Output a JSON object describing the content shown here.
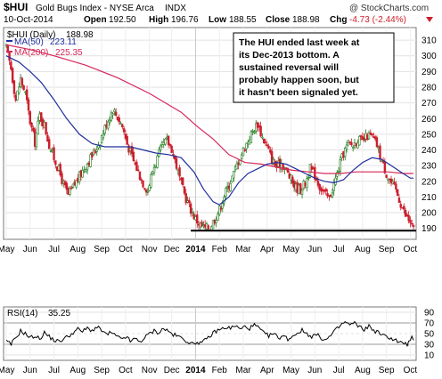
{
  "header": {
    "symbol": "$HUI",
    "name": "Gold Bugs Index - NYSE Arca",
    "exchange": "INDX",
    "date": "10-Oct-2014",
    "open_label": "Open",
    "open": "192.50",
    "high_label": "High",
    "high": "196.76",
    "low_label": "Low",
    "low": "188.55",
    "close_label": "Close",
    "close": "188.98",
    "chg_label": "Chg",
    "chg": "-4.73 (-2.44%)",
    "watermark": "@ StockCharts.com"
  },
  "colors": {
    "up": "#1b7a1b",
    "down": "#cc1e2c",
    "ma50": "#1f2e9e",
    "ma200": "#d6285a",
    "rsi": "#000000",
    "chg": "#cc1e2c"
  },
  "annotation": {
    "text_lines": [
      "The HUI ended last week at",
      "its Dec-2013 bottom. A",
      "sustained reversal will",
      "probably happen soon, but",
      "it hasn't been signaled yet."
    ]
  },
  "chart_data": [
    {
      "type": "candlestick",
      "legend": [
        {
          "label": "$HUI (Daily)",
          "value": "188.98"
        },
        {
          "label": "MA(50)",
          "value": "223.11"
        },
        {
          "label": "MA(200)",
          "value": "225.35"
        }
      ],
      "ylim": [
        183,
        318
      ],
      "y_ticks": [
        190,
        200,
        210,
        220,
        230,
        240,
        250,
        260,
        270,
        280,
        290,
        300,
        310
      ],
      "x_ticks": [
        "May",
        "Jun",
        "Jul",
        "Aug",
        "Sep",
        "Oct",
        "Nov",
        "Dec",
        "2014",
        "Feb",
        "Mar",
        "Apr",
        "May",
        "Jun",
        "Jul",
        "Aug",
        "Sep",
        "Oct"
      ],
      "support_level": 188.5,
      "price_path": [
        [
          0,
          305
        ],
        [
          3,
          292
        ],
        [
          6,
          272
        ],
        [
          9,
          285
        ],
        [
          12,
          276
        ],
        [
          15,
          258
        ],
        [
          18,
          245
        ],
        [
          21,
          262
        ],
        [
          24,
          256
        ],
        [
          27,
          243
        ],
        [
          30,
          235
        ],
        [
          33,
          227
        ],
        [
          36,
          218
        ],
        [
          39,
          211
        ],
        [
          43,
          218
        ],
        [
          47,
          225
        ],
        [
          51,
          232
        ],
        [
          55,
          238
        ],
        [
          59,
          246
        ],
        [
          63,
          257
        ],
        [
          67,
          266
        ],
        [
          70,
          261
        ],
        [
          73,
          255
        ],
        [
          76,
          244
        ],
        [
          80,
          233
        ],
        [
          83,
          226
        ],
        [
          86,
          219
        ],
        [
          89,
          214
        ],
        [
          92,
          227
        ],
        [
          95,
          235
        ],
        [
          98,
          242
        ],
        [
          101,
          246
        ],
        [
          104,
          241
        ],
        [
          107,
          230
        ],
        [
          110,
          218
        ],
        [
          113,
          209
        ],
        [
          116,
          202
        ],
        [
          119,
          196
        ],
        [
          122,
          192
        ],
        [
          125,
          190
        ],
        [
          128,
          191
        ],
        [
          131,
          196
        ],
        [
          134,
          202
        ],
        [
          137,
          211
        ],
        [
          140,
          218
        ],
        [
          143,
          225
        ],
        [
          146,
          233
        ],
        [
          149,
          240
        ],
        [
          152,
          246
        ],
        [
          155,
          252
        ],
        [
          158,
          257
        ],
        [
          161,
          248
        ],
        [
          164,
          242
        ],
        [
          167,
          234
        ],
        [
          170,
          229
        ],
        [
          173,
          232
        ],
        [
          176,
          227
        ],
        [
          179,
          221
        ],
        [
          182,
          216
        ],
        [
          185,
          215
        ],
        [
          188,
          219
        ],
        [
          191,
          228
        ],
        [
          194,
          224
        ],
        [
          197,
          217
        ],
        [
          200,
          212
        ],
        [
          203,
          209
        ],
        [
          206,
          218
        ],
        [
          209,
          228
        ],
        [
          212,
          238
        ],
        [
          215,
          244
        ],
        [
          218,
          243
        ],
        [
          221,
          247
        ],
        [
          224,
          245
        ],
        [
          227,
          249
        ],
        [
          230,
          248
        ],
        [
          233,
          243
        ],
        [
          236,
          233
        ],
        [
          239,
          225
        ],
        [
          242,
          219
        ],
        [
          245,
          214
        ],
        [
          248,
          206
        ],
        [
          251,
          198
        ],
        [
          254,
          194
        ],
        [
          256,
          189
        ]
      ],
      "ma50_path": [
        [
          0,
          300
        ],
        [
          8,
          296
        ],
        [
          15,
          290
        ],
        [
          22,
          283
        ],
        [
          30,
          272
        ],
        [
          38,
          260
        ],
        [
          46,
          250
        ],
        [
          54,
          244
        ],
        [
          62,
          242
        ],
        [
          70,
          242
        ],
        [
          78,
          242
        ],
        [
          86,
          240
        ],
        [
          94,
          238
        ],
        [
          102,
          237
        ],
        [
          110,
          235
        ],
        [
          118,
          226
        ],
        [
          124,
          215
        ],
        [
          130,
          207
        ],
        [
          134,
          205
        ],
        [
          140,
          210
        ],
        [
          146,
          219
        ],
        [
          152,
          225
        ],
        [
          158,
          228
        ],
        [
          164,
          231
        ],
        [
          170,
          232
        ],
        [
          176,
          231
        ],
        [
          182,
          228
        ],
        [
          188,
          225
        ],
        [
          194,
          222
        ],
        [
          200,
          220
        ],
        [
          206,
          219
        ],
        [
          212,
          221
        ],
        [
          218,
          227
        ],
        [
          224,
          232
        ],
        [
          230,
          235
        ],
        [
          236,
          234
        ],
        [
          242,
          230
        ],
        [
          248,
          226
        ],
        [
          254,
          222
        ],
        [
          256,
          222
        ]
      ],
      "ma200_path": [
        [
          0,
          307
        ],
        [
          15,
          304
        ],
        [
          30,
          300
        ],
        [
          50,
          294
        ],
        [
          70,
          286
        ],
        [
          90,
          276
        ],
        [
          110,
          264
        ],
        [
          120,
          255
        ],
        [
          130,
          247
        ],
        [
          140,
          237
        ],
        [
          150,
          232
        ],
        [
          160,
          231
        ],
        [
          170,
          229
        ],
        [
          180,
          227
        ],
        [
          190,
          226
        ],
        [
          200,
          225
        ],
        [
          210,
          225
        ],
        [
          220,
          226
        ],
        [
          230,
          226
        ],
        [
          240,
          226
        ],
        [
          250,
          225
        ],
        [
          256,
          225
        ]
      ]
    },
    {
      "type": "line",
      "legend": [
        {
          "label": "RSI(14)",
          "value": "35.25"
        }
      ],
      "ylim": [
        0,
        100
      ],
      "y_ticks": [
        10,
        30,
        50,
        70,
        90
      ],
      "ref_lines": [
        30,
        70
      ],
      "x_ticks": [
        "May",
        "Jun",
        "Jul",
        "Aug",
        "Sep",
        "Oct",
        "Nov",
        "Dec",
        "2014",
        "Feb",
        "Mar",
        "Apr",
        "May",
        "Jun",
        "Jul",
        "Aug",
        "Sep",
        "Oct"
      ],
      "rsi_path": [
        [
          0,
          35
        ],
        [
          3,
          30
        ],
        [
          6,
          42
        ],
        [
          9,
          55
        ],
        [
          12,
          50
        ],
        [
          15,
          42
        ],
        [
          18,
          46
        ],
        [
          21,
          40
        ],
        [
          24,
          52
        ],
        [
          27,
          44
        ],
        [
          30,
          38
        ],
        [
          33,
          35
        ],
        [
          36,
          40
        ],
        [
          39,
          45
        ],
        [
          42,
          52
        ],
        [
          45,
          58
        ],
        [
          48,
          54
        ],
        [
          51,
          60
        ],
        [
          54,
          56
        ],
        [
          57,
          62
        ],
        [
          60,
          56
        ],
        [
          63,
          48
        ],
        [
          66,
          52
        ],
        [
          69,
          45
        ],
        [
          72,
          40
        ],
        [
          75,
          44
        ],
        [
          78,
          36
        ],
        [
          81,
          40
        ],
        [
          84,
          35
        ],
        [
          87,
          42
        ],
        [
          90,
          50
        ],
        [
          93,
          55
        ],
        [
          96,
          52
        ],
        [
          99,
          60
        ],
        [
          102,
          54
        ],
        [
          105,
          48
        ],
        [
          108,
          45
        ],
        [
          111,
          40
        ],
        [
          114,
          36
        ],
        [
          117,
          30
        ],
        [
          120,
          35
        ],
        [
          123,
          32
        ],
        [
          126,
          40
        ],
        [
          129,
          48
        ],
        [
          132,
          55
        ],
        [
          135,
          58
        ],
        [
          138,
          62
        ],
        [
          141,
          60
        ],
        [
          144,
          65
        ],
        [
          147,
          58
        ],
        [
          150,
          63
        ],
        [
          153,
          60
        ],
        [
          156,
          66
        ],
        [
          159,
          60
        ],
        [
          162,
          50
        ],
        [
          165,
          46
        ],
        [
          168,
          50
        ],
        [
          171,
          42
        ],
        [
          174,
          46
        ],
        [
          177,
          40
        ],
        [
          180,
          45
        ],
        [
          183,
          52
        ],
        [
          186,
          56
        ],
        [
          189,
          50
        ],
        [
          192,
          45
        ],
        [
          195,
          48
        ],
        [
          198,
          42
        ],
        [
          201,
          38
        ],
        [
          204,
          46
        ],
        [
          207,
          56
        ],
        [
          210,
          65
        ],
        [
          213,
          72
        ],
        [
          216,
          66
        ],
        [
          219,
          70
        ],
        [
          222,
          62
        ],
        [
          225,
          58
        ],
        [
          228,
          64
        ],
        [
          231,
          56
        ],
        [
          234,
          52
        ],
        [
          237,
          46
        ],
        [
          240,
          44
        ],
        [
          243,
          40
        ],
        [
          246,
          36
        ],
        [
          249,
          32
        ],
        [
          252,
          30
        ],
        [
          255,
          42
        ],
        [
          256,
          35
        ]
      ]
    }
  ]
}
